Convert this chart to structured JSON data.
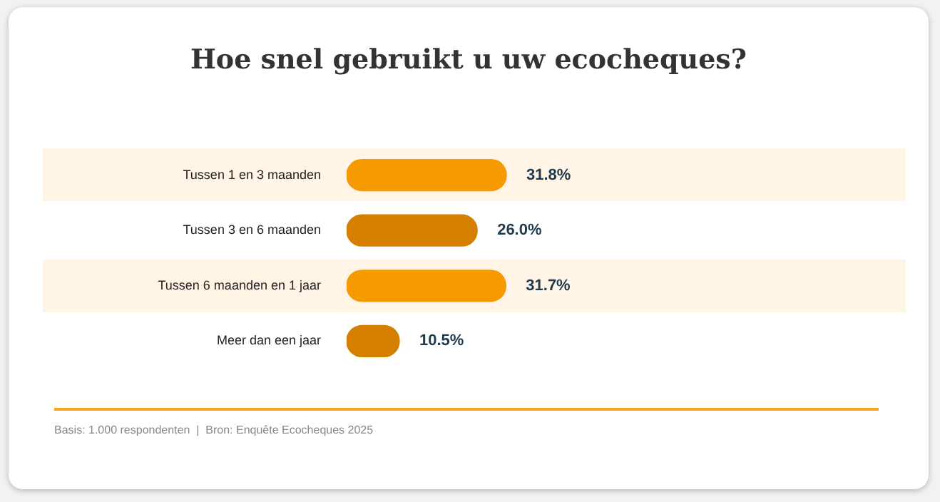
{
  "chart_data": {
    "type": "bar",
    "orientation": "horizontal",
    "title": "Hoe snel gebruikt u uw ecocheques?",
    "categories": [
      "Tussen 1 en 3 maanden",
      "Tussen 3 en 6 maanden",
      "Tussen 6 maanden en 1 jaar",
      "Meer dan een jaar"
    ],
    "values": [
      31.8,
      26.0,
      31.7,
      10.5
    ],
    "colors": [
      "#f59a00",
      "#d47f00",
      "#f59a00",
      "#d47f00"
    ],
    "value_labels": [
      "31.8%",
      "26.0%",
      "31.7%",
      "10.5%"
    ],
    "tick_labels": "y",
    "annotations": [
      "Basis: 1.000 respondenten  |  Bron: Enquête Ecocheques 2025"
    ]
  }
}
